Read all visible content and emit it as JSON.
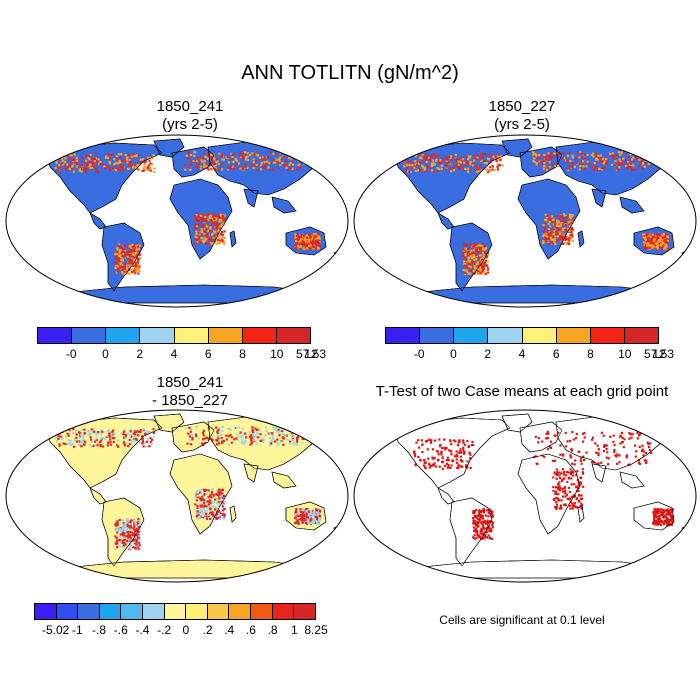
{
  "figure": {
    "title": "ANN TOTLITN (gN/m^2)"
  },
  "panels": [
    {
      "id": "case1",
      "title_line1": "1850_241",
      "title_line2": "(yrs 2-5)",
      "base_color": "#3a6ee0",
      "hot_color": "#e8231e",
      "mid_color": "#f5a623"
    },
    {
      "id": "case2",
      "title_line1": "1850_227",
      "title_line2": "(yrs 2-5)",
      "base_color": "#3a6ee0",
      "hot_color": "#e8231e",
      "mid_color": "#f5a623"
    },
    {
      "id": "diff",
      "title_line1": "1850_241",
      "title_line2": "- 1850_227",
      "base_color": "#fff59a",
      "hot_color": "#e8231e",
      "mid_color": "#9fd4f0"
    },
    {
      "id": "ttest",
      "title_line1": "T-Test of two Case means at each grid point",
      "title_line2": "",
      "base_color": "#ffffff",
      "hot_color": "#e0130f",
      "mid_color": "#e0130f"
    }
  ],
  "colorbars": {
    "case": {
      "colors": [
        "#3a1ff0",
        "#3a6ee0",
        "#1ea5ee",
        "#9fd4f0",
        "#fff07a",
        "#f5a623",
        "#f22414",
        "#d62728"
      ],
      "labels": [
        "-0",
        "0",
        "2",
        "4",
        "6",
        "8",
        "10",
        "12",
        "57.53"
      ]
    },
    "diff": {
      "colors": [
        "#3a1ff0",
        "#2f4ff0",
        "#3a6ee0",
        "#1ea5ee",
        "#4fb9f0",
        "#9fd4f0",
        "#fff59a",
        "#fff07a",
        "#f9c84a",
        "#f5a623",
        "#f05a14",
        "#e8231e",
        "#d62728"
      ],
      "labels": [
        "-5.02",
        "-1",
        "-.8",
        "-.6",
        "-.4",
        "-.2",
        "0",
        ".2",
        ".4",
        ".6",
        ".8",
        "1",
        "8.25"
      ]
    }
  },
  "ttest_note": "Cells are significant at 0.1 level"
}
